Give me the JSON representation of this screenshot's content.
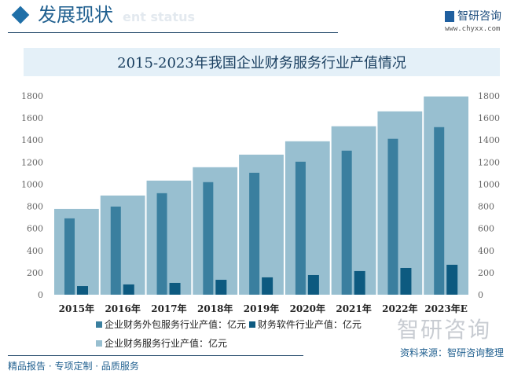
{
  "header": {
    "title": "发展现状",
    "ghost_text": "ent status",
    "logo_text": "智研咨询",
    "url": "www.chyxx.com"
  },
  "footer": {
    "tagline": "精品报告 · 专项定制 · 品质服务",
    "source": "资料来源：智研咨询整理",
    "watermark": "智研咨询"
  },
  "chart_data": {
    "type": "bar",
    "title": "2015-2023年我国企业财务服务行业产值情况",
    "categories": [
      "2015年",
      "2016年",
      "2017年",
      "2018年",
      "2019年",
      "2020年",
      "2021年",
      "2022年",
      "2023年E"
    ],
    "ylim": [
      0,
      1800
    ],
    "yticks": [
      0,
      200,
      400,
      600,
      800,
      1000,
      1200,
      1400,
      1600,
      1800
    ],
    "y2lim": [
      0,
      1800
    ],
    "grid": false,
    "legend_position": "bottom",
    "series": [
      {
        "name": "企业财务外包服务行业产值：亿元",
        "axis": "left",
        "color": "#3a7f9f",
        "values": [
          691,
          798,
          919,
          1019,
          1104,
          1204,
          1304,
          1411,
          1517
        ]
      },
      {
        "name": "财务软件行业产值：亿元",
        "axis": "left",
        "color": "#0d5a80",
        "values": [
          78,
          93,
          107,
          135,
          157,
          178,
          214,
          242,
          271
        ]
      },
      {
        "name": "企业财务服务行业产值：亿元",
        "axis": "right",
        "color": "#98bfd0",
        "values": [
          776,
          898,
          1033,
          1154,
          1268,
          1389,
          1525,
          1660,
          1795
        ]
      }
    ]
  }
}
